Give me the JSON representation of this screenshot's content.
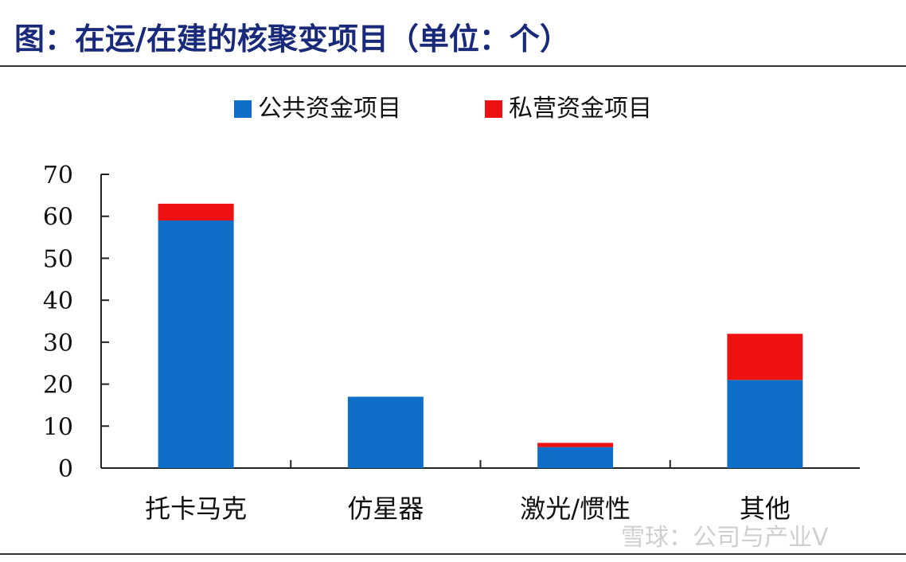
{
  "title": "图：在运/在建的核聚变项目（单位：个）",
  "watermark": "雪球：公司与产业V",
  "colors": {
    "public": "#0f6ec7",
    "private": "#ee1111",
    "title": "#1a2a7a"
  },
  "chart_data": {
    "type": "bar",
    "stacked": true,
    "categories": [
      "托卡马克",
      "仿星器",
      "激光/惯性",
      "其他"
    ],
    "series": [
      {
        "name": "公共资金项目",
        "values": [
          59,
          17,
          5,
          21
        ]
      },
      {
        "name": "私营资金项目",
        "values": [
          4,
          0,
          1,
          11
        ]
      }
    ],
    "yticks": [
      "0",
      "10",
      "20",
      "30",
      "40",
      "50",
      "60",
      "70"
    ],
    "ylim": [
      0,
      70
    ],
    "legend": "top-center",
    "grid": false
  }
}
